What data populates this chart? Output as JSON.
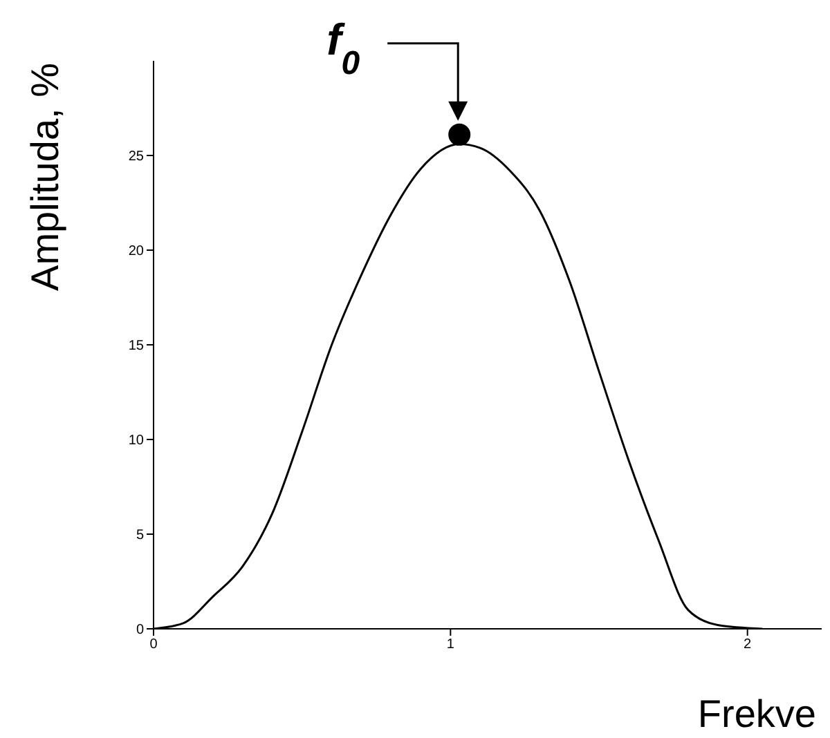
{
  "chart_data": {
    "type": "line",
    "xlabel": "Frekve",
    "ylabel": "Amplituda, %",
    "xlim": [
      0,
      2.25
    ],
    "xticks": [
      0,
      1,
      2
    ],
    "ylim": [
      0,
      30
    ],
    "yticks": [
      0,
      5,
      10,
      15,
      20,
      25
    ],
    "grid": false,
    "line_style": "solid",
    "series": [
      {
        "color": "#000000",
        "marker": "none",
        "x": [
          0,
          0.1,
          0.2,
          0.3,
          0.4,
          0.5,
          0.6,
          0.7,
          0.8,
          0.9,
          1.03,
          1.1,
          1.2,
          1.3,
          1.4,
          1.5,
          1.6,
          1.7,
          1.8,
          1.9,
          2.05
        ],
        "values": [
          0,
          0.3,
          1.7,
          3.3,
          6.1,
          10.4,
          15,
          18.7,
          21.9,
          24.3,
          25.6,
          25.4,
          24.2,
          22.1,
          18.4,
          13.6,
          8.9,
          4.7,
          1,
          0.2,
          0
        ]
      },
      {
        "type": "scatter",
        "color": "#000000",
        "marker": "circle",
        "x": [
          1.03
        ],
        "values": [
          26.1
        ]
      }
    ],
    "annotations": [
      {
        "text": "f$_{0}$",
        "x": 1.03,
        "y": 26.1
      }
    ]
  }
}
